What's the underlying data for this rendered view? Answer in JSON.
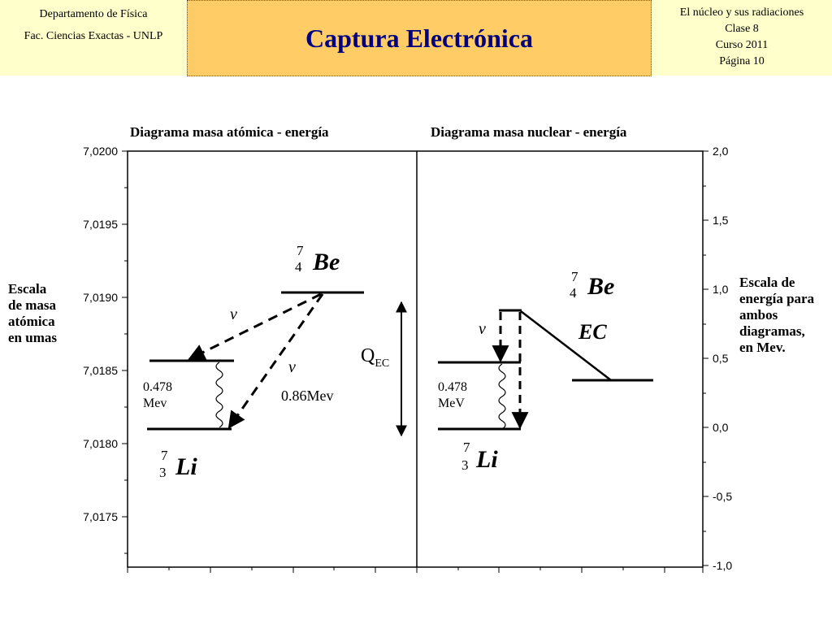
{
  "header": {
    "left": [
      "Departamento de Física",
      "Fac. Ciencias Exactas - UNLP"
    ],
    "title": "Captura Electrónica",
    "right": [
      "El núcleo y sus radiaciones",
      "Clase 8",
      "Curso 2011",
      "Página 10"
    ]
  },
  "panels": {
    "left_title": "Diagrama masa atómica - energía",
    "right_title": "Diagrama masa nuclear - energía"
  },
  "left_axis": {
    "label": [
      "Escala",
      "de masa",
      "atómica",
      "en umas"
    ],
    "ticks": [
      "7,0200",
      "7,0195",
      "7,0190",
      "7,0185",
      "7,0180",
      "7,0175"
    ]
  },
  "right_axis": {
    "label": [
      "Escala de",
      "energía para",
      "ambos",
      "diagramas,",
      "en Mev."
    ],
    "ticks": [
      "2,0",
      "1,5",
      "1,0",
      "0,5",
      "0,0",
      "-0,5",
      "-1,0"
    ]
  },
  "annotations": {
    "be_mass": "7",
    "be_charge": "4",
    "be_symbol": "Be",
    "li_mass": "7",
    "li_charge": "3",
    "li_symbol": "Li",
    "nu": "v",
    "q_main": "Q",
    "q_sub": "EC",
    "energy_left": [
      "0.478",
      "Mev"
    ],
    "energy_right": [
      "0.478",
      "MeV"
    ],
    "energy_086": "0.86Mev",
    "ec": "EC"
  }
}
